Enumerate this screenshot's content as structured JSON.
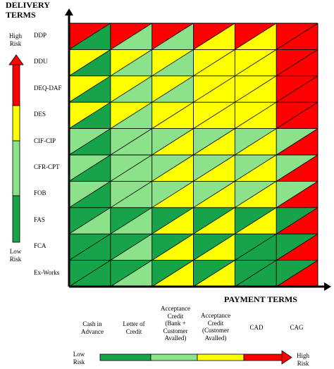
{
  "axes": {
    "y_title_line1": "DELIVERY",
    "y_title_line2": "TERMS",
    "x_title": "PAYMENT TERMS"
  },
  "vertical_scale": {
    "high_label_line1": "High",
    "high_label_line2": "Risk",
    "low_label_line1": "Low",
    "low_label_line2": "Risk"
  },
  "horizontal_scale": {
    "low_label_line1": "Low",
    "low_label_line2": "Risk",
    "high_label_line1": "High",
    "high_label_line2": "Risk"
  },
  "delivery_terms": [
    "DDP",
    "DDU",
    "DEQ-DAF",
    "DES",
    "CIF-CIP",
    "CFR-CPT",
    "FOB",
    "FAS",
    "FCA",
    "Ex-Works"
  ],
  "payment_terms": [
    [
      "Cash in",
      "Advance"
    ],
    [
      "Letter of",
      "Credit"
    ],
    [
      "Acceptance",
      "Credit",
      "(Bank +",
      "Customer",
      "Avalled)"
    ],
    [
      "Acceptance",
      "Credit",
      "(Customer",
      "Avalled)"
    ],
    [
      "CAD"
    ],
    [
      "CAG"
    ]
  ],
  "risk_colors": {
    "R": "#ff0000",
    "Y": "#ffff00",
    "L": "#8be28b",
    "G": "#16a34a"
  },
  "matrix": [
    [
      [
        "R",
        "G"
      ],
      [
        "R",
        "L"
      ],
      [
        "R",
        "L"
      ],
      [
        "R",
        "Y"
      ],
      [
        "R",
        "Y"
      ],
      [
        "R",
        "R"
      ]
    ],
    [
      [
        "Y",
        "G"
      ],
      [
        "Y",
        "L"
      ],
      [
        "Y",
        "L"
      ],
      [
        "Y",
        "Y"
      ],
      [
        "Y",
        "Y"
      ],
      [
        "R",
        "R"
      ]
    ],
    [
      [
        "Y",
        "G"
      ],
      [
        "Y",
        "L"
      ],
      [
        "Y",
        "L"
      ],
      [
        "Y",
        "Y"
      ],
      [
        "Y",
        "Y"
      ],
      [
        "R",
        "R"
      ]
    ],
    [
      [
        "Y",
        "G"
      ],
      [
        "Y",
        "L"
      ],
      [
        "Y",
        "Y"
      ],
      [
        "Y",
        "Y"
      ],
      [
        "Y",
        "Y"
      ],
      [
        "R",
        "R"
      ]
    ],
    [
      [
        "L",
        "G"
      ],
      [
        "L",
        "L"
      ],
      [
        "L",
        "Y"
      ],
      [
        "L",
        "Y"
      ],
      [
        "L",
        "Y"
      ],
      [
        "L",
        "R"
      ]
    ],
    [
      [
        "L",
        "G"
      ],
      [
        "L",
        "L"
      ],
      [
        "L",
        "Y"
      ],
      [
        "L",
        "Y"
      ],
      [
        "L",
        "Y"
      ],
      [
        "L",
        "R"
      ]
    ],
    [
      [
        "L",
        "G"
      ],
      [
        "L",
        "L"
      ],
      [
        "L",
        "Y"
      ],
      [
        "L",
        "Y"
      ],
      [
        "L",
        "Y"
      ],
      [
        "L",
        "R"
      ]
    ],
    [
      [
        "G",
        "L"
      ],
      [
        "G",
        "L"
      ],
      [
        "G",
        "Y"
      ],
      [
        "G",
        "Y"
      ],
      [
        "G",
        "Y"
      ],
      [
        "G",
        "R"
      ]
    ],
    [
      [
        "G",
        "G"
      ],
      [
        "G",
        "L"
      ],
      [
        "G",
        "Y"
      ],
      [
        "G",
        "Y"
      ],
      [
        "G",
        "G"
      ],
      [
        "G",
        "R"
      ]
    ],
    [
      [
        "G",
        "G"
      ],
      [
        "G",
        "L"
      ],
      [
        "G",
        "Y"
      ],
      [
        "G",
        "Y"
      ],
      [
        "G",
        "G"
      ],
      [
        "G",
        "R"
      ]
    ]
  ]
}
